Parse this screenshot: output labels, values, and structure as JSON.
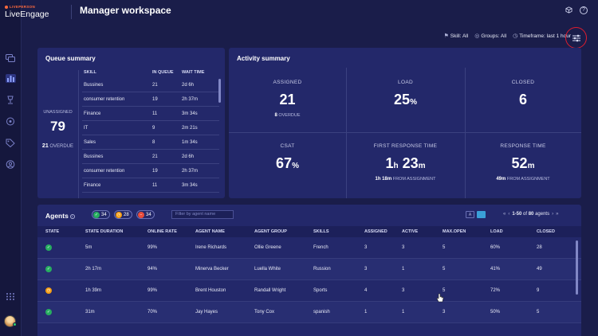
{
  "app": {
    "brand_small": "LIVEPERSON",
    "brand_product": "LiveEngage",
    "workspace_title": "Manager workspace"
  },
  "sidebar": {
    "items": [
      {
        "name": "conversations-icon"
      },
      {
        "name": "manager-workspace-icon"
      },
      {
        "name": "campaigns-icon"
      },
      {
        "name": "automation-icon"
      },
      {
        "name": "tags-icon"
      },
      {
        "name": "users-icon"
      },
      {
        "name": "apps-grid-icon"
      }
    ]
  },
  "filters": {
    "skill": "Skill: All",
    "groups": "Groups: All",
    "timeframe": "Timeframe: last 1 hour"
  },
  "queue_summary": {
    "title": "Queue summary",
    "unassigned_label": "UNASSIGNED",
    "unassigned_value": "79",
    "overdue_value": "21",
    "overdue_label": "OVERDUE",
    "columns": [
      "SKILL",
      "IN QUEUE",
      "WAIT TIME"
    ],
    "rows": [
      [
        "Bussines",
        "21",
        "2d 6h"
      ],
      [
        "consumer retention",
        "19",
        "2h 37m"
      ],
      [
        "Finance",
        "11",
        "3m 34s"
      ],
      [
        "IT",
        "9",
        "2m 21s"
      ],
      [
        "Sales",
        "8",
        "1m 34s"
      ],
      [
        "Bussines",
        "21",
        "2d 6h"
      ],
      [
        "consumer retention",
        "19",
        "2h 37m"
      ],
      [
        "Finance",
        "11",
        "3m 34s"
      ]
    ]
  },
  "activity_summary": {
    "title": "Activity summary",
    "assigned": {
      "label": "ASSIGNED",
      "value": "21",
      "sub_value": "8",
      "sub_label": "OVERDUE"
    },
    "load": {
      "label": "LOAD",
      "value": "25",
      "unit": "%"
    },
    "closed": {
      "label": "CLOSED",
      "value": "6"
    },
    "csat": {
      "label": "CSAT",
      "value": "67",
      "unit": "%"
    },
    "first_response": {
      "label": "FIRST RESPONSE TIME",
      "value_h": "1",
      "unit_h": "h",
      "value_m": "23",
      "unit_m": "m",
      "sub_value": "1h 18m",
      "sub_label": "FROM ASSIGNMENT"
    },
    "response": {
      "label": "RESPONSE TIME",
      "value": "52",
      "unit": "m",
      "sub_value": "49m",
      "sub_label": "FROM ASSIGNMENT"
    }
  },
  "agents": {
    "title": "Agents",
    "status_counts": [
      {
        "count": "34",
        "color": "#27ae60",
        "icon": "check-icon"
      },
      {
        "count": "28",
        "color": "#f39c12",
        "icon": "clock-icon"
      },
      {
        "count": "34",
        "color": "#e74c3c",
        "icon": "minus-icon"
      }
    ],
    "search_placeholder": "Filter by agent name",
    "pager": {
      "range": "1-50",
      "of": "of",
      "total": "80",
      "unit": "agents"
    },
    "columns": [
      "STATE",
      "STATE DURATION",
      "ONLINE RATE",
      "AGENT NAME",
      "AGENT GROUP",
      "SKILLS",
      "ASSIGNED",
      "ACTIVE",
      "MAX.OPEN",
      "LOAD",
      "CLOSED"
    ],
    "rows": [
      {
        "state": "online",
        "color": "#27ae60",
        "duration": "5m",
        "rate": "99%",
        "name": "Irene Richards",
        "group": "Ollie Greene",
        "skills": "French",
        "assigned": "3",
        "active": "3",
        "maxopen": "5",
        "load": "60%",
        "closed": "28"
      },
      {
        "state": "online",
        "color": "#27ae60",
        "duration": "2h 17m",
        "rate": "94%",
        "name": "Minerva Becker",
        "group": "Luella White",
        "skills": "Russion",
        "assigned": "3",
        "active": "1",
        "maxopen": "5",
        "load": "41%",
        "closed": "49"
      },
      {
        "state": "away",
        "color": "#f39c12",
        "duration": "1h 39m",
        "rate": "99%",
        "name": "Brent Houston",
        "group": "Randall Wright",
        "skills": "Sports",
        "assigned": "4",
        "active": "3",
        "maxopen": "5",
        "load": "72%",
        "closed": "9"
      },
      {
        "state": "online",
        "color": "#27ae60",
        "duration": "31m",
        "rate": "70%",
        "name": "Jay Hayes",
        "group": "Tony Cox",
        "skills": "spanish",
        "assigned": "1",
        "active": "1",
        "maxopen": "3",
        "load": "50%",
        "closed": "5"
      }
    ]
  }
}
